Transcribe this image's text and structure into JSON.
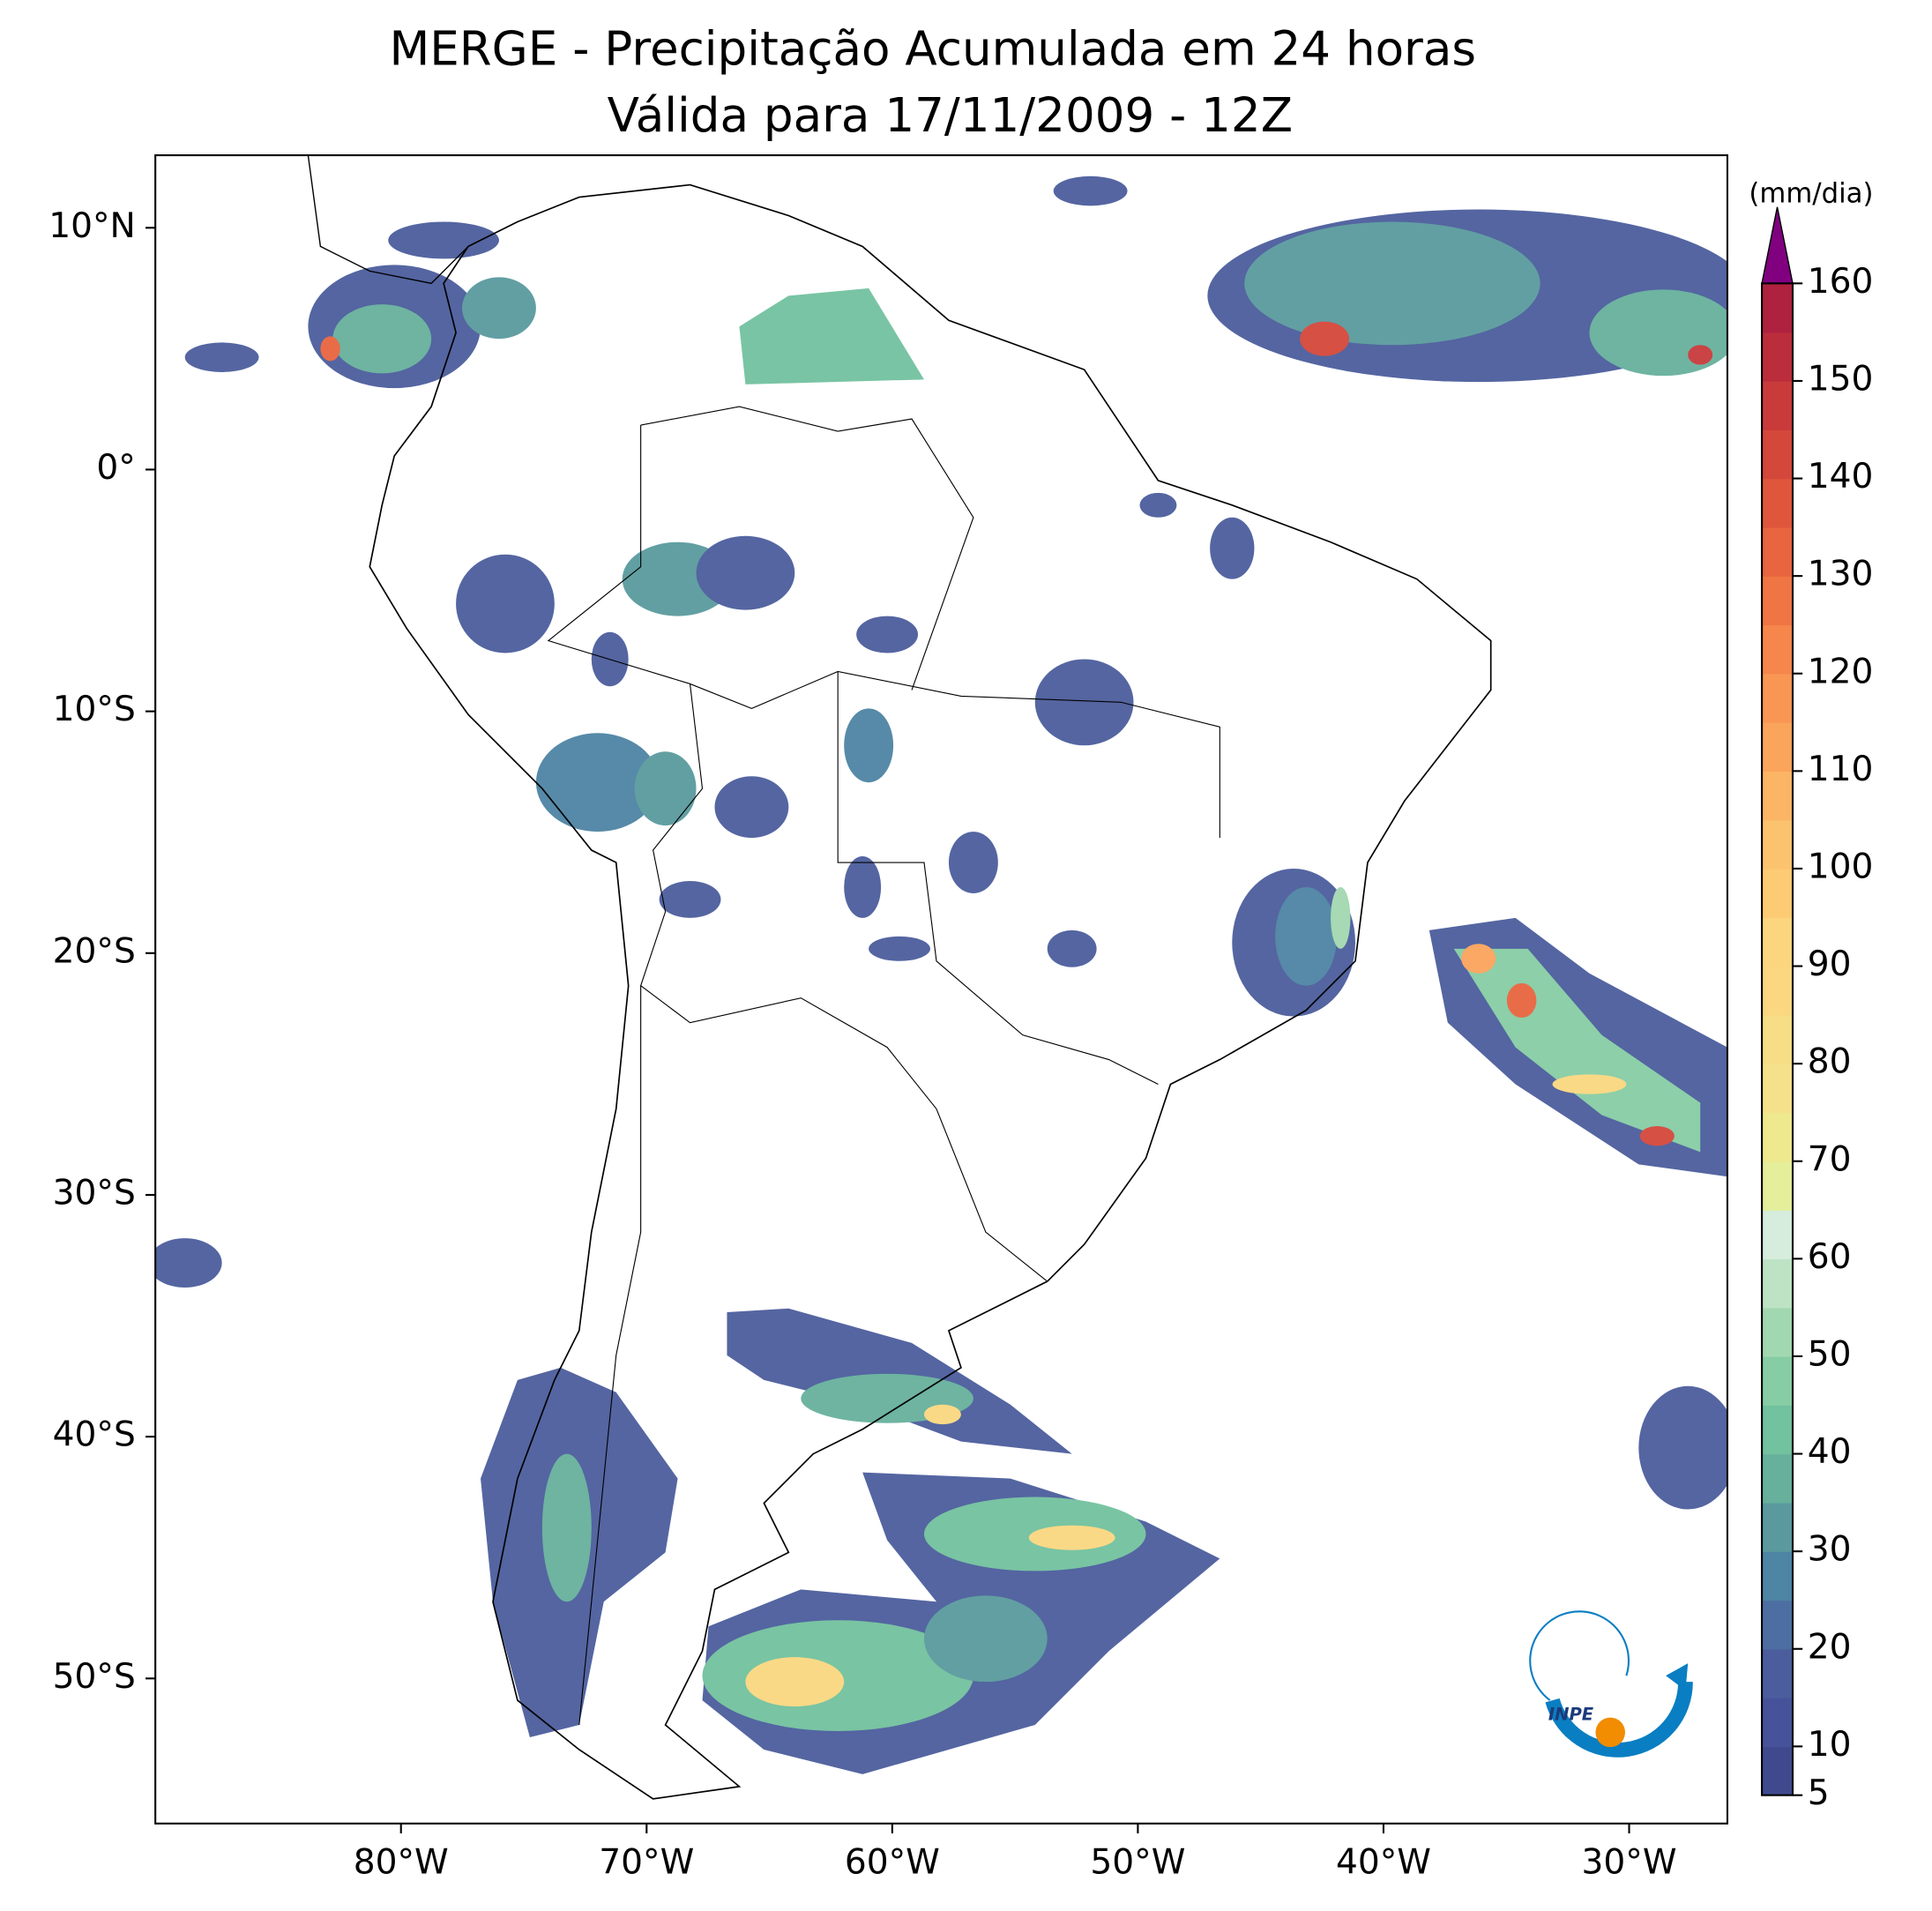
{
  "title": "MERGE - Precipitação Acumulada em 24 horas",
  "subtitle": "Válida para 17/11/2009 - 12Z",
  "map": {
    "lon_range": [
      -90,
      -26
    ],
    "lat_range": [
      -56,
      13
    ],
    "lon_ticks": [
      {
        "value": -80,
        "label": "80°W"
      },
      {
        "value": -70,
        "label": "70°W"
      },
      {
        "value": -60,
        "label": "60°W"
      },
      {
        "value": -50,
        "label": "50°W"
      },
      {
        "value": -40,
        "label": "40°W"
      },
      {
        "value": -30,
        "label": "30°W"
      }
    ],
    "lat_ticks": [
      {
        "value": 10,
        "label": "10°N"
      },
      {
        "value": 0,
        "label": "0°"
      },
      {
        "value": -10,
        "label": "10°S"
      },
      {
        "value": -20,
        "label": "20°S"
      },
      {
        "value": -30,
        "label": "30°S"
      },
      {
        "value": -40,
        "label": "40°S"
      },
      {
        "value": -50,
        "label": "50°S"
      }
    ]
  },
  "colorbar": {
    "label": "(mm/dia)",
    "range": [
      5,
      160
    ],
    "ticks": [
      5,
      10,
      20,
      30,
      40,
      50,
      60,
      70,
      80,
      90,
      100,
      110,
      120,
      130,
      140,
      150,
      160
    ],
    "colors": [
      "#3f4a8e",
      "#46539a",
      "#4b5d9c",
      "#4d6ea2",
      "#4e84a4",
      "#5a9a9e",
      "#67b09c",
      "#72c19f",
      "#86cda5",
      "#a2d8b0",
      "#bde3c4",
      "#d6ecdc",
      "#e5ee9a",
      "#eee98f",
      "#f5e18b",
      "#f7dd85",
      "#fad780",
      "#fcd67e",
      "#fdcb74",
      "#fcc36f",
      "#fcb565",
      "#fba45c",
      "#f99654",
      "#f6864c",
      "#f07545",
      "#e8653f",
      "#df563c",
      "#d4473b",
      "#c93a3b",
      "#bc2d3c",
      "#ae213f"
    ],
    "extend_color": "#800080"
  },
  "logo": {
    "text": "INPE"
  }
}
